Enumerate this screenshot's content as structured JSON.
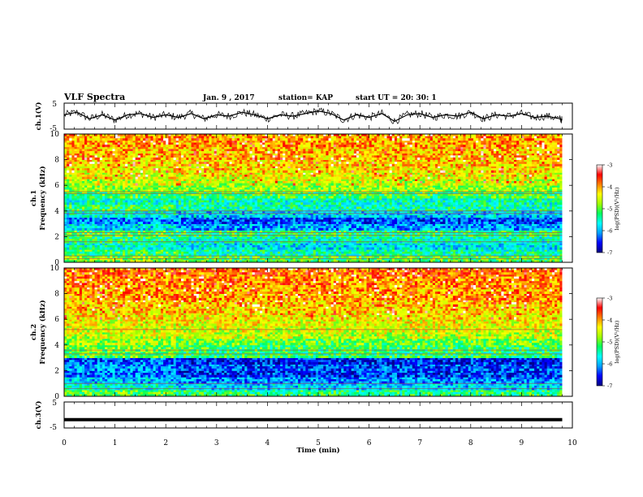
{
  "header": {
    "title": "VLF Spectra",
    "date": "Jan. 9 , 2017",
    "station": "station= KAP",
    "start_ut": "start  UT =  20: 30: 1"
  },
  "chart_data": [
    {
      "type": "line",
      "name": "ch1-waveform",
      "ylabel": "ch.1(V)",
      "yticks": [
        "5",
        "-5"
      ],
      "ylim": [
        -5,
        5
      ],
      "xlim": [
        0,
        10
      ],
      "x": [
        0,
        0.25,
        0.5,
        0.75,
        1,
        1.25,
        1.5,
        1.75,
        2,
        2.25,
        2.5,
        2.75,
        3,
        3.25,
        3.5,
        3.75,
        4,
        4.25,
        4.5,
        4.75,
        5,
        5.25,
        5.5,
        5.75,
        6,
        6.25,
        6.5,
        6.75,
        7,
        7.25,
        7.5,
        7.75,
        8,
        8.25,
        8.5,
        8.75,
        9,
        9.25,
        9.5,
        9.75,
        9.8
      ],
      "y": [
        0.5,
        1.5,
        -1.0,
        0.5,
        -1.5,
        0.5,
        1.0,
        -0.5,
        0.5,
        -0.5,
        1.0,
        -1.0,
        0.5,
        0.0,
        1.5,
        0.5,
        -1.0,
        0.5,
        0.0,
        1.0,
        2.0,
        1.0,
        -1.5,
        0.5,
        -0.5,
        1.0,
        -2.0,
        0.5,
        1.0,
        -0.5,
        0.5,
        0.0,
        1.5,
        -1.0,
        0.5,
        0.0,
        1.0,
        -0.5,
        0.0,
        -1.0,
        -1.5
      ]
    },
    {
      "type": "heatmap",
      "name": "ch1-spectrogram",
      "ylabel": "ch.1\nFrequency (kHz)",
      "yticks": [
        0,
        2,
        4,
        6,
        8,
        10
      ],
      "ylim": [
        0,
        10
      ],
      "xlim": [
        0,
        9.8
      ],
      "colorbar": {
        "label": "log(PSD)(V²/Hz)",
        "range": [
          -7,
          -3
        ],
        "ticks": [
          "-3",
          "-4",
          "-5",
          "-6",
          "-7"
        ]
      },
      "rows_khz": [
        {
          "f_to": 0.5,
          "value": -4.8
        },
        {
          "f_to": 1.0,
          "value": -5.2
        },
        {
          "f_to": 1.5,
          "value": -5.5
        },
        {
          "f_to": 2.0,
          "value": -5.3
        },
        {
          "f_to": 2.5,
          "value": -5.0
        },
        {
          "f_to": 3.0,
          "value": -5.8
        },
        {
          "f_to": 3.5,
          "value": -6.1
        },
        {
          "f_to": 4.0,
          "value": -5.6
        },
        {
          "f_to": 4.5,
          "value": -5.2
        },
        {
          "f_to": 5.0,
          "value": -5.5
        },
        {
          "f_to": 5.5,
          "value": -5.1
        },
        {
          "f_to": 6.0,
          "value": -4.8
        },
        {
          "f_to": 6.5,
          "value": -4.6
        },
        {
          "f_to": 7.0,
          "value": -4.4
        },
        {
          "f_to": 7.5,
          "value": -4.3
        },
        {
          "f_to": 8.0,
          "value": -4.2
        },
        {
          "f_to": 8.5,
          "value": -4.1
        },
        {
          "f_to": 9.0,
          "value": -4.1
        },
        {
          "f_to": 9.5,
          "value": -4.0
        },
        {
          "f_to": 10.0,
          "value": -4.0
        }
      ],
      "lines_khz": [
        5.5,
        5.35,
        4.0,
        3.8,
        2.3,
        2.1,
        1.6,
        0.5,
        0.3
      ]
    },
    {
      "type": "heatmap",
      "name": "ch2-spectrogram",
      "ylabel": "ch.2\nFrequency (kHz)",
      "yticks": [
        0,
        2,
        4,
        6,
        8,
        10
      ],
      "ylim": [
        0,
        10
      ],
      "xlim": [
        0,
        9.8
      ],
      "colorbar": {
        "label": "log(PSD)(V²/Hz)",
        "range": [
          -7,
          -3
        ],
        "ticks": [
          "-3",
          "-4",
          "-5",
          "-6",
          "-7"
        ]
      },
      "rows_khz": [
        {
          "f_to": 0.5,
          "value": -5.0
        },
        {
          "f_to": 1.0,
          "value": -5.6
        },
        {
          "f_to": 1.5,
          "value": -5.9
        },
        {
          "f_to": 2.0,
          "value": -6.2
        },
        {
          "f_to": 2.5,
          "value": -6.1
        },
        {
          "f_to": 3.0,
          "value": -6.3
        },
        {
          "f_to": 3.5,
          "value": -5.0
        },
        {
          "f_to": 4.0,
          "value": -4.9
        },
        {
          "f_to": 4.5,
          "value": -4.7
        },
        {
          "f_to": 5.0,
          "value": -4.6
        },
        {
          "f_to": 5.5,
          "value": -4.5
        },
        {
          "f_to": 6.0,
          "value": -4.4
        },
        {
          "f_to": 6.5,
          "value": -4.3
        },
        {
          "f_to": 7.0,
          "value": -4.2
        },
        {
          "f_to": 7.5,
          "value": -4.1
        },
        {
          "f_to": 8.0,
          "value": -4.0
        },
        {
          "f_to": 8.5,
          "value": -4.0
        },
        {
          "f_to": 9.0,
          "value": -3.9
        },
        {
          "f_to": 9.5,
          "value": -3.9
        },
        {
          "f_to": 10.0,
          "value": -3.8
        }
      ],
      "lines_khz": [
        5.2,
        3.6,
        3.3,
        1.0,
        0.6
      ]
    },
    {
      "type": "line",
      "name": "ch3-waveform",
      "ylabel": "ch.3(V)",
      "yticks": [
        "5",
        "-5"
      ],
      "ylim": [
        -5,
        5
      ],
      "xlim": [
        0,
        10
      ],
      "x": [
        0,
        9.8
      ],
      "y": [
        -1.8,
        -1.8
      ]
    }
  ],
  "xaxis": {
    "label": "Time (min)",
    "ticks": [
      "0",
      "1",
      "2",
      "3",
      "4",
      "5",
      "6",
      "7",
      "8",
      "9",
      "10"
    ],
    "range": [
      0,
      10
    ]
  },
  "colors": {
    "colormap": [
      "#000080",
      "#0000ff",
      "#00a0ff",
      "#00ffff",
      "#00ff60",
      "#a0ff00",
      "#ffff00",
      "#ff8000",
      "#ff0000",
      "#ffffff"
    ]
  }
}
